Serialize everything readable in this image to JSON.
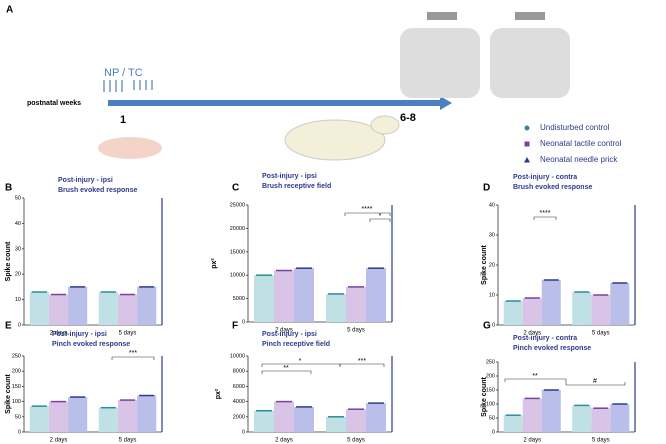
{
  "header": {
    "label": "A",
    "treatment": "NP / TC",
    "axis_label": "postnatal weeks",
    "start": "1",
    "end": "6-8"
  },
  "legend": [
    {
      "name": "Undisturbed control",
      "color": "#2e8b9a"
    },
    {
      "name": "Neonatal tactile control",
      "color": "#7b3f9e"
    },
    {
      "name": "Neonatal needle prick",
      "color": "#2e3a8c"
    }
  ],
  "chart_data": [
    {
      "type": "bar",
      "label": "B",
      "title": "Post-injury - ipsi",
      "subtitle": "Brush evoked response",
      "y_label": "Spike count",
      "categories": [
        "2 days",
        "5 days"
      ],
      "series": [
        {
          "color": "#2e8b9a",
          "values": [
            13,
            13
          ]
        },
        {
          "color": "#7b3f9e",
          "values": [
            12,
            12
          ]
        },
        {
          "color": "#2e3a8c",
          "values": [
            15,
            15
          ]
        }
      ],
      "ylim": [
        0,
        50
      ],
      "yticks": [
        0,
        10,
        20,
        30,
        40,
        50
      ],
      "annotations": []
    },
    {
      "type": "bar",
      "label": "C",
      "title": "Post-injury - ipsi",
      "subtitle": "Brush receptive field",
      "y_label": "px²",
      "categories": [
        "2 days",
        "5 days"
      ],
      "series": [
        {
          "color": "#2e8b9a",
          "values": [
            10000,
            6000
          ]
        },
        {
          "color": "#7b3f9e",
          "values": [
            11000,
            7500
          ]
        },
        {
          "color": "#2e3a8c",
          "values": [
            11500,
            11500
          ]
        }
      ],
      "ylim": [
        0,
        25000
      ],
      "yticks": [
        0,
        5000,
        10000,
        15000,
        20000,
        25000
      ],
      "annotations": [
        "****",
        "*"
      ]
    },
    {
      "type": "bar",
      "label": "D",
      "title": "Post-injury - contra",
      "subtitle": "Brush evoked response",
      "y_label": "Spike count",
      "categories": [
        "2 days",
        "5 days"
      ],
      "series": [
        {
          "color": "#2e8b9a",
          "values": [
            8,
            11
          ]
        },
        {
          "color": "#7b3f9e",
          "values": [
            9,
            10
          ]
        },
        {
          "color": "#2e3a8c",
          "values": [
            15,
            14
          ]
        }
      ],
      "ylim": [
        0,
        40
      ],
      "yticks": [
        0,
        10,
        20,
        30,
        40
      ],
      "annotations": [
        "****"
      ]
    },
    {
      "type": "bar",
      "label": "E",
      "title": "Post-injury - ipsi",
      "subtitle": "Pinch evoked response",
      "y_label": "Spike count",
      "categories": [
        "2 days",
        "5 days"
      ],
      "series": [
        {
          "color": "#2e8b9a",
          "values": [
            85,
            80
          ]
        },
        {
          "color": "#7b3f9e",
          "values": [
            100,
            105
          ]
        },
        {
          "color": "#2e3a8c",
          "values": [
            115,
            120
          ]
        }
      ],
      "ylim": [
        0,
        250
      ],
      "yticks": [
        0,
        50,
        100,
        150,
        200,
        250
      ],
      "annotations": [
        "***"
      ]
    },
    {
      "type": "bar",
      "label": "F",
      "title": "Post-injury - ipsi",
      "subtitle": "Pinch receptive field",
      "y_label": "px²",
      "categories": [
        "2 days",
        "5 days"
      ],
      "series": [
        {
          "color": "#2e8b9a",
          "values": [
            2800,
            2000
          ]
        },
        {
          "color": "#7b3f9e",
          "values": [
            4000,
            3000
          ]
        },
        {
          "color": "#2e3a8c",
          "values": [
            3300,
            3800
          ]
        }
      ],
      "ylim": [
        0,
        10000
      ],
      "yticks": [
        0,
        2000,
        4000,
        6000,
        8000,
        10000
      ],
      "annotations": [
        "*",
        "**",
        "***"
      ]
    },
    {
      "type": "bar",
      "label": "G",
      "title": "Post-injury - contra",
      "subtitle": "Pinch evoked response",
      "y_label": "Spike count",
      "categories": [
        "2 days",
        "5 days"
      ],
      "series": [
        {
          "color": "#2e8b9a",
          "values": [
            60,
            95
          ]
        },
        {
          "color": "#7b3f9e",
          "values": [
            120,
            85
          ]
        },
        {
          "color": "#2e3a8c",
          "values": [
            150,
            100
          ]
        }
      ],
      "ylim": [
        0,
        250
      ],
      "yticks": [
        0,
        50,
        100,
        150,
        200,
        250
      ],
      "annotations": [
        "**",
        "#"
      ]
    }
  ]
}
